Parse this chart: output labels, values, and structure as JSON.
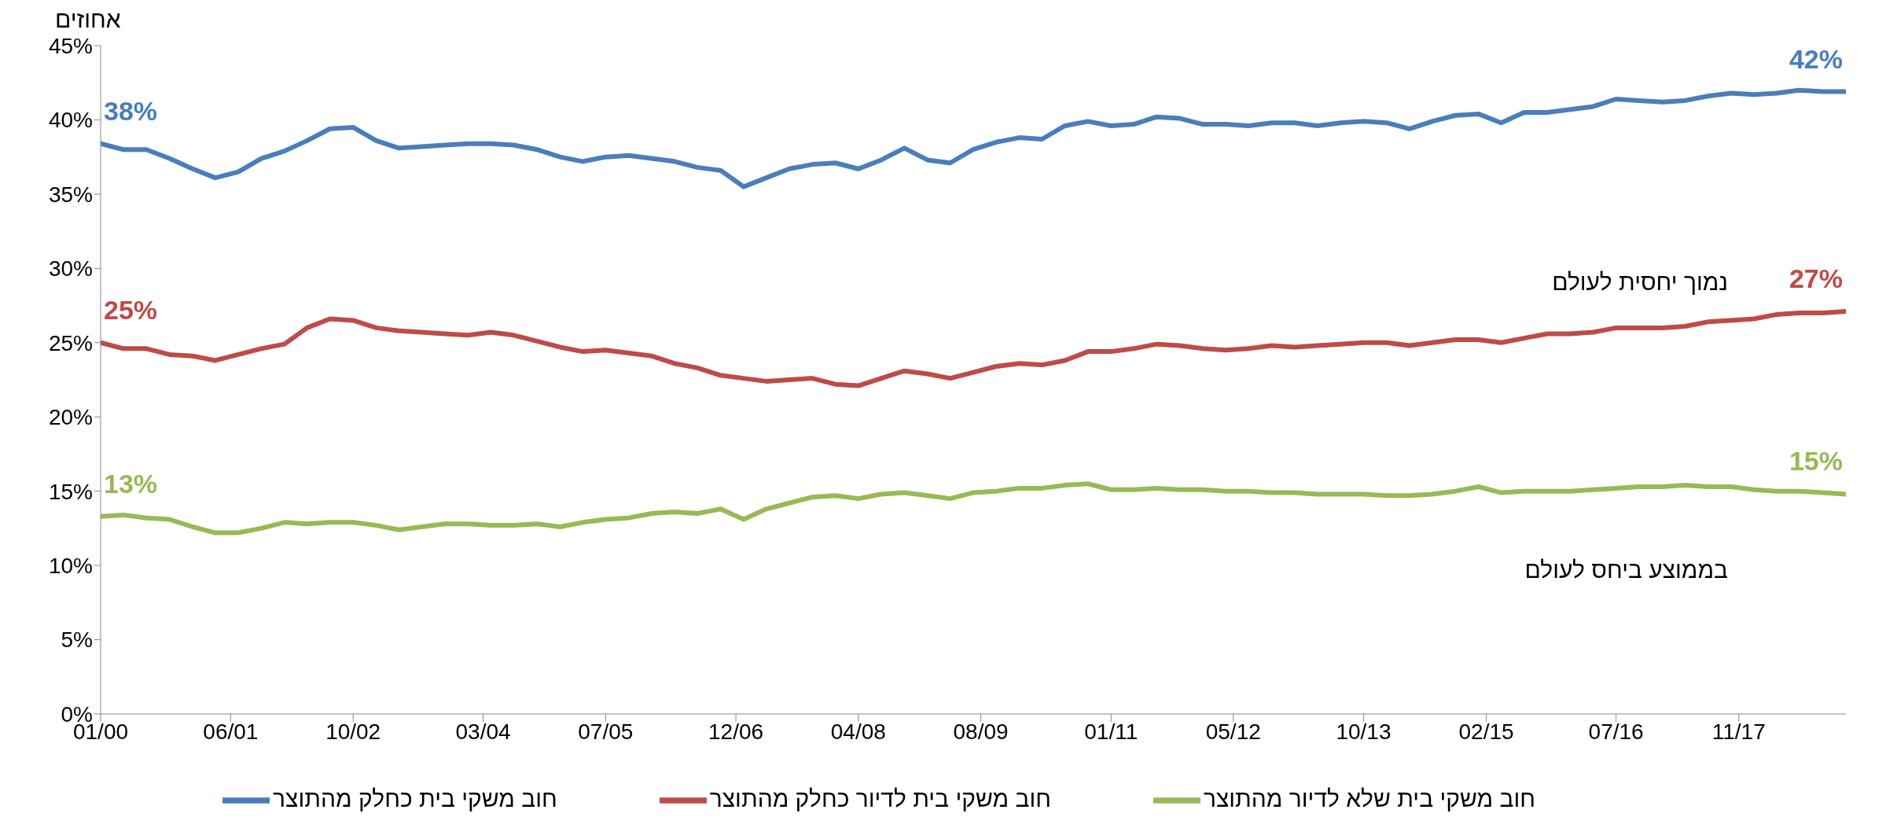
{
  "chart_data": {
    "type": "line",
    "ylabel": "אחוזים",
    "x": [
      "2000-01",
      "2000-04",
      "2000-07",
      "2000-10",
      "2001-01",
      "2001-04",
      "2001-07",
      "2001-10",
      "2002-01",
      "2002-04",
      "2002-07",
      "2002-10",
      "2003-01",
      "2003-04",
      "2003-07",
      "2003-10",
      "2004-01",
      "2004-04",
      "2004-07",
      "2004-10",
      "2005-01",
      "2005-04",
      "2005-07",
      "2005-10",
      "2006-01",
      "2006-04",
      "2006-07",
      "2006-10",
      "2007-01",
      "2007-04",
      "2007-07",
      "2007-10",
      "2008-01",
      "2008-04",
      "2008-07",
      "2008-10",
      "2009-01",
      "2009-04",
      "2009-07",
      "2009-10",
      "2010-01",
      "2010-04",
      "2010-07",
      "2010-10",
      "2011-01",
      "2011-04",
      "2011-07",
      "2011-10",
      "2012-01",
      "2012-04",
      "2012-07",
      "2012-10",
      "2013-01",
      "2013-04",
      "2013-07",
      "2013-10",
      "2014-01",
      "2014-04",
      "2014-07",
      "2014-10",
      "2015-01",
      "2015-04",
      "2015-07",
      "2015-10",
      "2016-01",
      "2016-04",
      "2016-07",
      "2016-10",
      "2017-01",
      "2017-04",
      "2017-07",
      "2017-10",
      "2018-01",
      "2018-04",
      "2018-07",
      "2018-10",
      "2019-01"
    ],
    "series": [
      {
        "name": "חוב משקי בית כחלק מהתוצר",
        "color": "#4a7ebb",
        "values": [
          38.4,
          38.0,
          38.0,
          37.4,
          36.7,
          36.1,
          36.5,
          37.4,
          37.9,
          38.6,
          39.4,
          39.5,
          38.6,
          38.1,
          38.2,
          38.3,
          38.4,
          38.4,
          38.3,
          38.0,
          37.5,
          37.2,
          37.5,
          37.6,
          37.4,
          37.2,
          36.8,
          36.6,
          35.5,
          36.1,
          36.7,
          37.0,
          37.1,
          36.7,
          37.3,
          38.1,
          37.3,
          37.1,
          38.0,
          38.5,
          38.8,
          38.7,
          39.6,
          39.9,
          39.6,
          39.7,
          40.2,
          40.1,
          39.7,
          39.7,
          39.6,
          39.8,
          39.8,
          39.6,
          39.8,
          39.9,
          39.8,
          39.4,
          39.9,
          40.3,
          40.4,
          39.8,
          40.5,
          40.5,
          40.7,
          40.9,
          41.4,
          41.3,
          41.2,
          41.3,
          41.6,
          41.8,
          41.7,
          41.8,
          42.0,
          41.9,
          41.9
        ],
        "value_labels": [
          "38%",
          null,
          null,
          null,
          null,
          null,
          null,
          null,
          null,
          null,
          null,
          null,
          null,
          null,
          null,
          null,
          null,
          null,
          null,
          null,
          null,
          null,
          null,
          null,
          null,
          null,
          null,
          null,
          null,
          null,
          null,
          null,
          null,
          null,
          null,
          null,
          null,
          null,
          null,
          null,
          null,
          null,
          null,
          null,
          null,
          null,
          null,
          null,
          null,
          null,
          null,
          null,
          null,
          null,
          null,
          null,
          null,
          null,
          null,
          null,
          null,
          null,
          null,
          null,
          null,
          null,
          null,
          null,
          null,
          null,
          null,
          null,
          null,
          null,
          null,
          null,
          "42%"
        ]
      },
      {
        "name": "חוב משקי בית לדיור כחלק מהתוצר",
        "color": "#be4b48",
        "values": [
          25.0,
          24.6,
          24.6,
          24.2,
          24.1,
          23.8,
          24.2,
          24.6,
          24.9,
          26.0,
          26.6,
          26.5,
          26.0,
          25.8,
          25.7,
          25.6,
          25.5,
          25.7,
          25.5,
          25.1,
          24.7,
          24.4,
          24.5,
          24.3,
          24.1,
          23.6,
          23.3,
          22.8,
          22.6,
          22.4,
          22.5,
          22.6,
          22.2,
          22.1,
          22.6,
          23.1,
          22.9,
          22.6,
          23.0,
          23.4,
          23.6,
          23.5,
          23.8,
          24.4,
          24.4,
          24.6,
          24.9,
          24.8,
          24.6,
          24.5,
          24.6,
          24.8,
          24.7,
          24.8,
          24.9,
          25.0,
          25.0,
          24.8,
          25.0,
          25.2,
          25.2,
          25.0,
          25.3,
          25.6,
          25.6,
          25.7,
          26.0,
          26.0,
          26.0,
          26.1,
          26.4,
          26.5,
          26.6,
          26.9,
          27.0,
          27.0,
          27.1
        ],
        "value_labels": [
          "25%",
          null,
          null,
          null,
          null,
          null,
          null,
          null,
          null,
          null,
          null,
          null,
          null,
          null,
          null,
          null,
          null,
          null,
          null,
          null,
          null,
          null,
          null,
          null,
          null,
          null,
          null,
          null,
          null,
          null,
          null,
          null,
          null,
          null,
          null,
          null,
          null,
          null,
          null,
          null,
          null,
          null,
          null,
          null,
          null,
          null,
          null,
          null,
          null,
          null,
          null,
          null,
          null,
          null,
          null,
          null,
          null,
          null,
          null,
          null,
          null,
          null,
          null,
          null,
          null,
          null,
          null,
          null,
          null,
          null,
          null,
          null,
          null,
          null,
          null,
          null,
          "27%"
        ]
      },
      {
        "name": "חוב משקי בית שלא לדיור מהתוצר",
        "color": "#98b954",
        "values": [
          13.3,
          13.4,
          13.2,
          13.1,
          12.6,
          12.2,
          12.2,
          12.5,
          12.9,
          12.8,
          12.9,
          12.9,
          12.7,
          12.4,
          12.6,
          12.8,
          12.8,
          12.7,
          12.7,
          12.8,
          12.6,
          12.9,
          13.1,
          13.2,
          13.5,
          13.6,
          13.5,
          13.8,
          13.1,
          13.8,
          14.2,
          14.6,
          14.7,
          14.5,
          14.8,
          14.9,
          14.7,
          14.5,
          14.9,
          15.0,
          15.2,
          15.2,
          15.4,
          15.5,
          15.1,
          15.1,
          15.2,
          15.1,
          15.1,
          15.0,
          15.0,
          14.9,
          14.9,
          14.8,
          14.8,
          14.8,
          14.7,
          14.7,
          14.8,
          15.0,
          15.3,
          14.9,
          15.0,
          15.0,
          15.0,
          15.1,
          15.2,
          15.3,
          15.3,
          15.4,
          15.3,
          15.3,
          15.1,
          15.0,
          15.0,
          14.9,
          14.8
        ],
        "value_labels": [
          "13%",
          null,
          null,
          null,
          null,
          null,
          null,
          null,
          null,
          null,
          null,
          null,
          null,
          null,
          null,
          null,
          null,
          null,
          null,
          null,
          null,
          null,
          null,
          null,
          null,
          null,
          null,
          null,
          null,
          null,
          null,
          null,
          null,
          null,
          null,
          null,
          null,
          null,
          null,
          null,
          null,
          null,
          null,
          null,
          null,
          null,
          null,
          null,
          null,
          null,
          null,
          null,
          null,
          null,
          null,
          null,
          null,
          null,
          null,
          null,
          null,
          null,
          null,
          null,
          null,
          null,
          null,
          null,
          null,
          null,
          null,
          null,
          null,
          null,
          null,
          null,
          "15%"
        ]
      }
    ],
    "annotations": [
      "נמוך יחסית לעולם",
      "בממוצע ביחס לעולם"
    ],
    "xlim": [
      "2000-01",
      "2019-01"
    ],
    "xticks": [
      {
        "value": "2000-01",
        "label": "01/00"
      },
      {
        "value": "2001-06",
        "label": "06/01"
      },
      {
        "value": "2002-10",
        "label": "10/02"
      },
      {
        "value": "2004-03",
        "label": "03/04"
      },
      {
        "value": "2005-07",
        "label": "07/05"
      },
      {
        "value": "2006-12",
        "label": "12/06"
      },
      {
        "value": "2008-04",
        "label": "04/08"
      },
      {
        "value": "2009-08",
        "label": "08/09"
      },
      {
        "value": "2011-01",
        "label": "01/11"
      },
      {
        "value": "2012-05",
        "label": "05/12"
      },
      {
        "value": "2013-10",
        "label": "10/13"
      },
      {
        "value": "2015-02",
        "label": "02/15"
      },
      {
        "value": "2016-07",
        "label": "07/16"
      },
      {
        "value": "2017-11",
        "label": "11/17"
      }
    ],
    "ylim": [
      0,
      45
    ],
    "yticks": [
      {
        "value": 0,
        "label": "0%"
      },
      {
        "value": 5,
        "label": "5%"
      },
      {
        "value": 10,
        "label": "10%"
      },
      {
        "value": 15,
        "label": "15%"
      },
      {
        "value": 20,
        "label": "20%"
      },
      {
        "value": 25,
        "label": "25%"
      },
      {
        "value": 30,
        "label": "30%"
      },
      {
        "value": 35,
        "label": "35%"
      },
      {
        "value": 40,
        "label": "40%"
      },
      {
        "value": 45,
        "label": "45%"
      }
    ],
    "grid": false,
    "legend": "bottom",
    "marker": "none",
    "line_style": "solid"
  }
}
